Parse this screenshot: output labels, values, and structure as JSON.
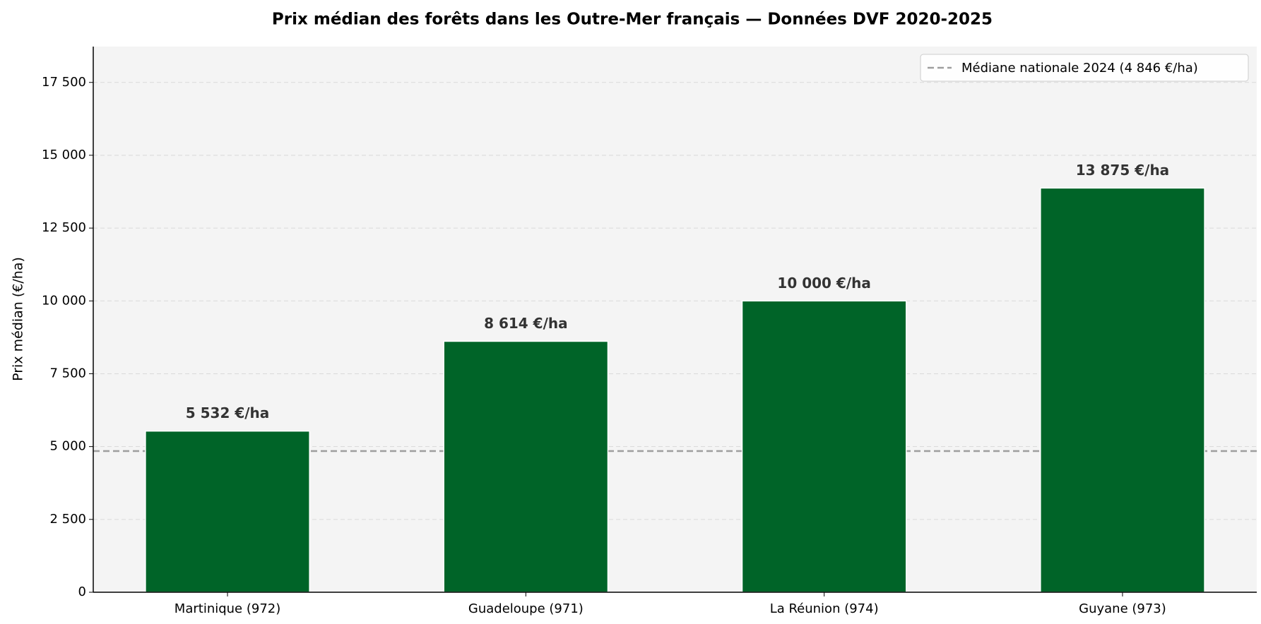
{
  "chart_data": {
    "type": "bar",
    "title": "Prix médian des forêts dans les Outre-Mer français — Données DVF 2020-2025",
    "y_label": "Prix médian (€/ha)",
    "categories": [
      "Martinique (972)",
      "Guadeloupe (971)",
      "La Réunion (974)",
      "Guyane (973)"
    ],
    "values": [
      5532,
      8614,
      10000,
      13875
    ],
    "value_labels": [
      "5 532 €/ha",
      "8 614 €/ha",
      "10 000 €/ha",
      "13 875 €/ha"
    ],
    "color": "#006428",
    "ylim": [
      0,
      18730
    ],
    "yticks": [
      0,
      {
        "value": 2500,
        "label": "2 500"
      },
      {
        "value": 5000,
        "label": "5 000"
      },
      {
        "value": 7500,
        "label": "7 500"
      },
      {
        "value": 10000,
        "label": "10 000"
      },
      {
        "value": 12500,
        "label": "12 500"
      },
      {
        "value": 15000,
        "label": "15 000"
      },
      {
        "value": 17500,
        "label": "17 500"
      }
    ],
    "grid": true,
    "reference_line": {
      "value": 4846,
      "label": "Médiane nationale 2024 (4 846 €/ha)",
      "color": "#9e9e9e"
    },
    "legend_position": "upper-right"
  }
}
